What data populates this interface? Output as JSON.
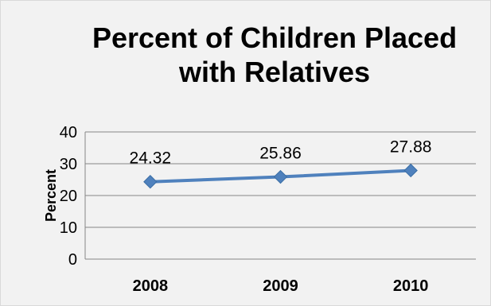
{
  "chart_data": {
    "type": "line",
    "title_lines": [
      "Percent of Children Placed",
      "with Relatives"
    ],
    "categories": [
      "2008",
      "2009",
      "2010"
    ],
    "series": [
      {
        "values": [
          24.32,
          25.86,
          27.88
        ],
        "data_labels": [
          "24.32",
          "25.86",
          "27.88"
        ]
      }
    ],
    "xlabel": "",
    "ylabel": "Percent",
    "ylim": [
      0,
      40
    ],
    "yticks": [
      0,
      10,
      20,
      30,
      40
    ],
    "ytick_labels": [
      "0",
      "10",
      "20",
      "30",
      "40"
    ],
    "grid": true,
    "legend": "none",
    "colors": {
      "line": "#4f81bd",
      "marker": "#4f81bd",
      "grid": "#868686",
      "background": "#f2f2f2"
    }
  }
}
